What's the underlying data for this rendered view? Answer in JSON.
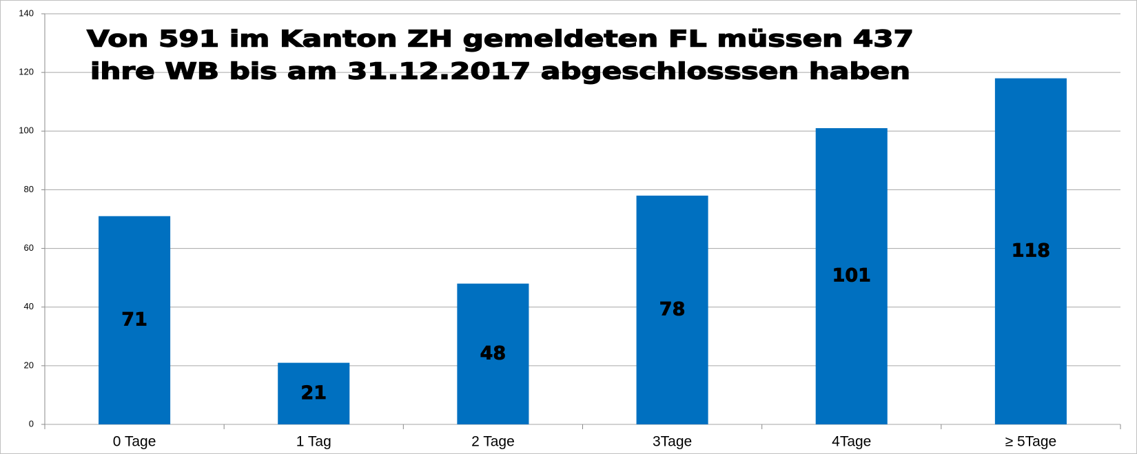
{
  "chart_data": {
    "type": "bar",
    "annotations": [
      "Von 591 im Kanton ZH gemeldeten FL müssen 437",
      "ihre WB bis am 31.12.2017 abgeschlosssen haben"
    ],
    "categories": [
      "0 Tage",
      "1 Tag",
      "2 Tage",
      "3Tage",
      "4Tage",
      "≥ 5Tage"
    ],
    "values": [
      71,
      21,
      48,
      78,
      101,
      118
    ],
    "color": "#0070c0",
    "ylim": [
      0,
      140
    ],
    "yticks": [
      0,
      20,
      40,
      60,
      80,
      100,
      120,
      140
    ],
    "grid": true
  }
}
